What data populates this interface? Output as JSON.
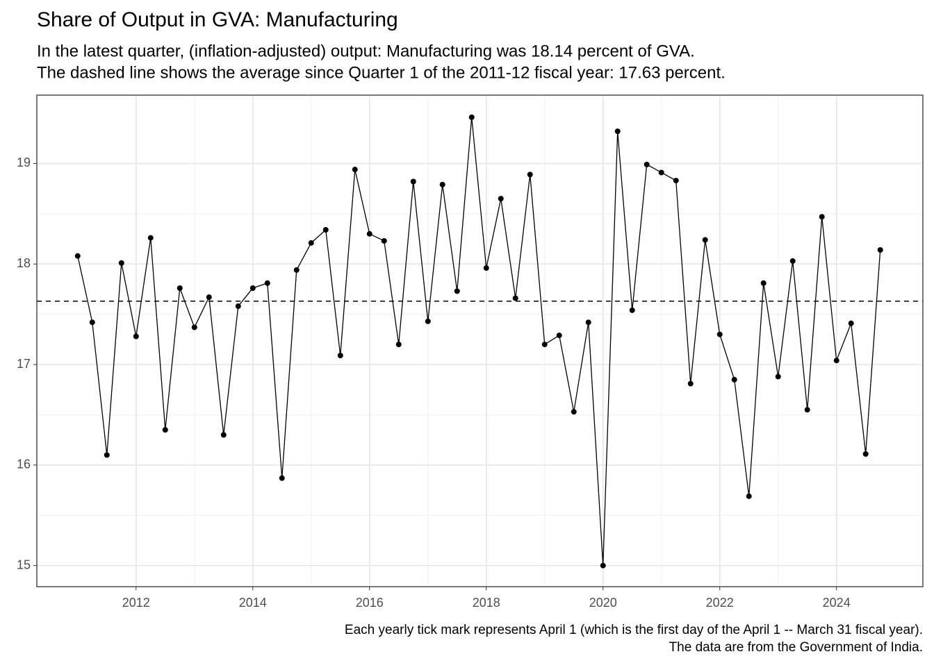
{
  "chart_data": {
    "type": "line",
    "title": "Share of Output in GVA: Manufacturing",
    "subtitle": [
      "In the latest quarter, (inflation-adjusted) output: Manufacturing was 18.14 percent of GVA.",
      "The dashed line shows the average since Quarter 1 of the 2011-12 fiscal year: 17.63 percent."
    ],
    "caption": [
      "Each yearly tick mark represents April 1 (which is the first day of the April 1 -- March 31 fiscal year).",
      "The data are from the Government of India."
    ],
    "x": [
      2011,
      2011.25,
      2011.5,
      2011.75,
      2012,
      2012.25,
      2012.5,
      2012.75,
      2013,
      2013.25,
      2013.5,
      2013.75,
      2014,
      2014.25,
      2014.5,
      2014.75,
      2015,
      2015.25,
      2015.5,
      2015.75,
      2016,
      2016.25,
      2016.5,
      2016.75,
      2017,
      2017.25,
      2017.5,
      2017.75,
      2018,
      2018.25,
      2018.5,
      2018.75,
      2019,
      2019.25,
      2019.5,
      2019.75,
      2020,
      2020.25,
      2020.5,
      2020.75,
      2021,
      2021.25,
      2021.5,
      2021.75,
      2022,
      2022.25,
      2022.5,
      2022.75,
      2023,
      2023.25,
      2023.5,
      2023.75,
      2024,
      2024.25,
      2024.5,
      2024.75
    ],
    "values": [
      18.08,
      17.42,
      16.1,
      18.01,
      17.28,
      18.26,
      16.35,
      17.76,
      17.37,
      17.67,
      16.3,
      17.58,
      17.76,
      17.81,
      15.87,
      17.94,
      18.21,
      18.34,
      17.09,
      18.94,
      18.3,
      18.23,
      17.2,
      18.82,
      17.43,
      18.79,
      17.73,
      19.46,
      17.96,
      18.65,
      17.66,
      18.89,
      17.2,
      17.29,
      16.53,
      17.42,
      15.0,
      19.32,
      17.54,
      18.99,
      18.91,
      18.83,
      16.81,
      18.24,
      17.3,
      16.85,
      15.69,
      17.81,
      16.88,
      18.03,
      16.55,
      18.47,
      17.04,
      17.41,
      16.11,
      18.14
    ],
    "color": "#000000",
    "hline": 17.63,
    "xlim": [
      2010.3,
      2025.48
    ],
    "xticks": [
      2012,
      2014,
      2016,
      2018,
      2020,
      2022,
      2024
    ],
    "ylim": [
      14.79,
      19.68
    ],
    "yticks": [
      15,
      16,
      17,
      18,
      19
    ],
    "grid": true
  }
}
